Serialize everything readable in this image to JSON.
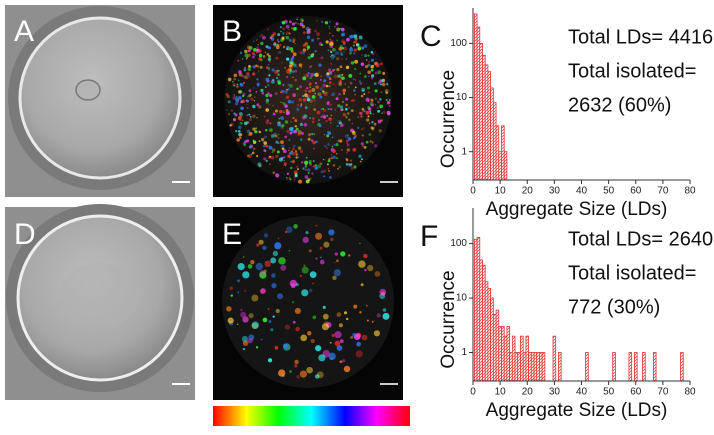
{
  "panel_labels": [
    "A",
    "B",
    "D",
    "E"
  ],
  "chart_data": [
    {
      "type": "bar",
      "panel_label": "C",
      "x_label": "Aggregate Size (LDs)",
      "y_label": "Occurrence",
      "annotations": [
        "Total LDs= 4416",
        "Total isolated=",
        "2632 (60%)"
      ],
      "x": [
        1,
        2,
        3,
        4,
        5,
        6,
        7,
        8,
        9,
        10,
        11,
        12
      ],
      "values": [
        350,
        200,
        100,
        60,
        40,
        30,
        15,
        8,
        3,
        1,
        3,
        1
      ],
      "color": "#e03030",
      "log_y": true,
      "xlim": [
        0,
        80
      ],
      "xticks": [
        0,
        10,
        20,
        30,
        40,
        50,
        60,
        70,
        80
      ],
      "ylim": [
        0.3,
        450
      ],
      "yticks": [
        1,
        10,
        100
      ]
    },
    {
      "type": "bar",
      "panel_label": "F",
      "x_label": "Aggregate Size (LDs)",
      "y_label": "Occurrence",
      "annotations": [
        "Total LDs= 2640",
        "Total isolated=",
        "772 (30%)"
      ],
      "x": [
        1,
        2,
        3,
        4,
        5,
        6,
        7,
        8,
        9,
        10,
        11,
        12,
        13,
        14,
        15,
        16,
        17,
        18,
        19,
        20,
        21,
        22,
        23,
        24,
        25,
        26,
        30,
        32,
        42,
        52,
        58,
        60,
        63,
        67,
        77
      ],
      "values": [
        120,
        130,
        50,
        40,
        20,
        15,
        10,
        5,
        6,
        3,
        3,
        2,
        3,
        1,
        2,
        1,
        1,
        2,
        1,
        2,
        1,
        1,
        1,
        1,
        1,
        1,
        2,
        1,
        1,
        1,
        1,
        1,
        1,
        1,
        1
      ],
      "color": "#e03030",
      "log_y": true,
      "xlim": [
        0,
        80
      ],
      "xticks": [
        0,
        10,
        20,
        30,
        40,
        50,
        60,
        70,
        80
      ],
      "ylim": [
        0.3,
        450
      ],
      "yticks": [
        1,
        10,
        100
      ]
    }
  ]
}
